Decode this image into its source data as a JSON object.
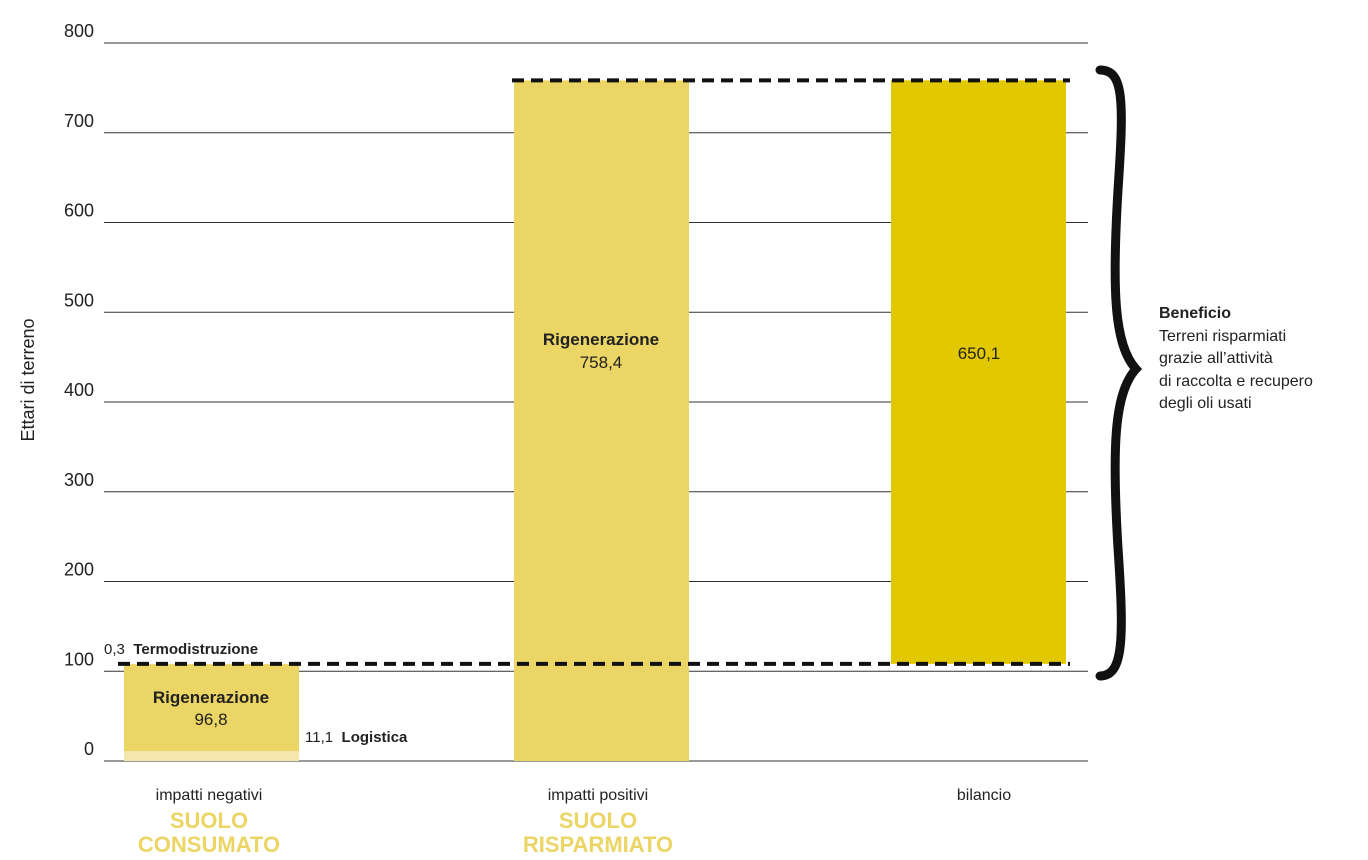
{
  "chart_data": {
    "type": "bar",
    "ylabel": "Ettari di terreno",
    "ylim": [
      0,
      800
    ],
    "yticks": [
      "0",
      "100",
      "200",
      "300",
      "400",
      "500",
      "600",
      "700",
      "800"
    ],
    "grid": true,
    "categories": [
      {
        "label": "impatti negativi",
        "sublabel_line1": "SUOLO",
        "sublabel_line2": "CONSUMATO"
      },
      {
        "label": "impatti positivi",
        "sublabel_line1": "SUOLO",
        "sublabel_line2": "RISPARMIATO"
      },
      {
        "label": "bilancio"
      }
    ],
    "bars": [
      {
        "category": "impatti negativi",
        "segments": [
          {
            "name": "Logistica",
            "value": 11.1,
            "value_text": "11,1",
            "color": "#f5e7ab"
          },
          {
            "name": "Rigenerazione",
            "value": 96.8,
            "value_text": "96,8",
            "color": "#ebd564"
          },
          {
            "name": "Termodistruzione",
            "value": 0.3,
            "value_text": "0,3",
            "color": "#ebd564"
          }
        ],
        "total": 108.2
      },
      {
        "category": "impatti positivi",
        "segments": [
          {
            "name": "Rigenerazione",
            "value": 758.4,
            "value_text": "758,4",
            "color": "#ebd564"
          }
        ]
      },
      {
        "category": "bilancio",
        "base": 108.2,
        "top": 758.4,
        "value": 650.1,
        "value_text": "650,1",
        "color": "#e2c800"
      }
    ],
    "reference_lines": [
      108.2,
      758.4
    ],
    "annotation": {
      "title": "Beneficio",
      "lines": [
        "Terreni risparmiati",
        "grazie all’attività",
        "di raccolta e recupero",
        "degli oli usati"
      ]
    },
    "colors": {
      "label_accent": "#ebd564",
      "axis": "#222222"
    }
  }
}
